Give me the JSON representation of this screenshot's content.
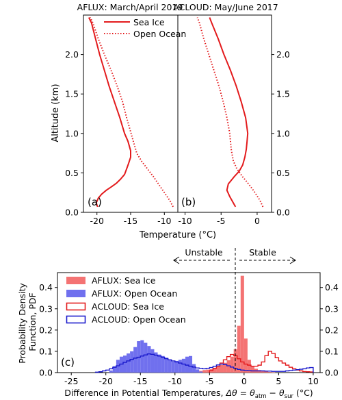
{
  "chart_data": [
    {
      "type": "line",
      "panel_label": "(a)",
      "title": "AFLUX: March/April 2019",
      "xlim": [
        -22,
        -8
      ],
      "ylim": [
        0,
        2.5
      ],
      "xticks": [
        -20,
        -15,
        -10
      ],
      "yticks": [
        0.0,
        0.5,
        1.0,
        1.5,
        2.0
      ],
      "ylabel": "Altitude (km)",
      "legend": {
        "position": "top-right",
        "entries": [
          "Sea Ice",
          "Open Ocean"
        ]
      },
      "series": [
        {
          "name": "Sea Ice",
          "style": "solid",
          "color": "#e31a1c",
          "points": [
            [
              -19.9,
              0.07
            ],
            [
              -20.1,
              0.12
            ],
            [
              -19.8,
              0.18
            ],
            [
              -19.3,
              0.23
            ],
            [
              -18.6,
              0.28
            ],
            [
              -17.9,
              0.32
            ],
            [
              -17.1,
              0.37
            ],
            [
              -16.5,
              0.42
            ],
            [
              -15.9,
              0.48
            ],
            [
              -15.6,
              0.55
            ],
            [
              -15.3,
              0.62
            ],
            [
              -15.0,
              0.7
            ],
            [
              -15.0,
              0.78
            ],
            [
              -15.4,
              0.9
            ],
            [
              -15.9,
              1.0
            ],
            [
              -16.6,
              1.2
            ],
            [
              -17.4,
              1.4
            ],
            [
              -18.2,
              1.6
            ],
            [
              -18.9,
              1.8
            ],
            [
              -19.6,
              2.0
            ],
            [
              -20.2,
              2.2
            ],
            [
              -20.8,
              2.4
            ],
            [
              -21.2,
              2.47
            ]
          ]
        },
        {
          "name": "Open Ocean",
          "style": "dotted",
          "color": "#e31a1c",
          "points": [
            [
              -8.7,
              0.07
            ],
            [
              -9.2,
              0.15
            ],
            [
              -10.0,
              0.25
            ],
            [
              -10.8,
              0.35
            ],
            [
              -11.6,
              0.45
            ],
            [
              -12.5,
              0.55
            ],
            [
              -13.4,
              0.65
            ],
            [
              -14.1,
              0.75
            ],
            [
              -14.6,
              0.9
            ],
            [
              -15.1,
              1.05
            ],
            [
              -15.6,
              1.2
            ],
            [
              -16.2,
              1.4
            ],
            [
              -17.0,
              1.6
            ],
            [
              -17.9,
              1.8
            ],
            [
              -18.9,
              2.0
            ],
            [
              -19.8,
              2.2
            ],
            [
              -20.6,
              2.4
            ],
            [
              -21.0,
              2.47
            ]
          ]
        }
      ]
    },
    {
      "type": "line",
      "panel_label": "(b)",
      "title": "ACLOUD: May/June 2017",
      "xlim": [
        -11,
        2
      ],
      "ylim": [
        0,
        2.5
      ],
      "xticks": [
        -10,
        -5,
        0
      ],
      "yticks": [
        0.0,
        0.5,
        1.0,
        1.5,
        2.0
      ],
      "xlabel": "Temperature (°C)",
      "series": [
        {
          "name": "Sea Ice",
          "style": "solid",
          "color": "#e31a1c",
          "points": [
            [
              -3.0,
              0.07
            ],
            [
              -3.3,
              0.12
            ],
            [
              -3.8,
              0.2
            ],
            [
              -4.2,
              0.28
            ],
            [
              -4.0,
              0.36
            ],
            [
              -3.2,
              0.45
            ],
            [
              -2.5,
              0.52
            ],
            [
              -2.0,
              0.6
            ],
            [
              -1.7,
              0.7
            ],
            [
              -1.5,
              0.8
            ],
            [
              -1.4,
              0.9
            ],
            [
              -1.3,
              1.0
            ],
            [
              -1.6,
              1.2
            ],
            [
              -2.2,
              1.4
            ],
            [
              -2.9,
              1.6
            ],
            [
              -3.7,
              1.8
            ],
            [
              -4.6,
              2.0
            ],
            [
              -5.4,
              2.2
            ],
            [
              -6.3,
              2.4
            ],
            [
              -6.6,
              2.47
            ]
          ]
        },
        {
          "name": "Open Ocean",
          "style": "dotted",
          "color": "#e31a1c",
          "points": [
            [
              0.8,
              0.07
            ],
            [
              0.4,
              0.15
            ],
            [
              -0.3,
              0.25
            ],
            [
              -1.1,
              0.35
            ],
            [
              -2.0,
              0.45
            ],
            [
              -2.8,
              0.55
            ],
            [
              -3.3,
              0.65
            ],
            [
              -3.6,
              0.8
            ],
            [
              -3.8,
              1.0
            ],
            [
              -4.2,
              1.2
            ],
            [
              -4.7,
              1.4
            ],
            [
              -5.3,
              1.6
            ],
            [
              -6.0,
              1.8
            ],
            [
              -6.7,
              2.0
            ],
            [
              -7.4,
              2.2
            ],
            [
              -8.0,
              2.4
            ],
            [
              -8.3,
              2.47
            ]
          ]
        }
      ]
    },
    {
      "type": "histogram",
      "panel_label": "(c)",
      "xlim": [
        -27,
        11
      ],
      "ylim": [
        0,
        0.47
      ],
      "xticks": [
        -25,
        -20,
        -15,
        -10,
        -5,
        0,
        5,
        10
      ],
      "yticks": [
        0.0,
        0.1,
        0.2,
        0.3,
        0.4
      ],
      "xlabel": "Difference in Potential Temperatures, Δθ = θatm − θsur (°C)",
      "ylabel": "Probability Density Function, PDF",
      "annotations": {
        "unstable": "Unstable",
        "stable": "Stable"
      },
      "legend": {
        "position": "top-left"
      },
      "bin_width": 0.5,
      "series": [
        {
          "name": "AFLUX: Sea Ice",
          "style": "filled",
          "color": "#f47373",
          "bins": [
            [
              -10.5,
              0.003
            ],
            [
              -10.0,
              0.002
            ],
            [
              -9.5,
              0.004
            ],
            [
              -9.0,
              0.005
            ],
            [
              -8.5,
              0.006
            ],
            [
              -8.0,
              0.007
            ],
            [
              -7.5,
              0.009
            ],
            [
              -7.0,
              0.01
            ],
            [
              -6.5,
              0.008
            ],
            [
              -6.0,
              0.012
            ],
            [
              -5.5,
              0.014
            ],
            [
              -5.0,
              0.016
            ],
            [
              -4.5,
              0.022
            ],
            [
              -4.0,
              0.028
            ],
            [
              -3.5,
              0.036
            ],
            [
              -3.0,
              0.046
            ],
            [
              -2.5,
              0.058
            ],
            [
              -2.0,
              0.075
            ],
            [
              -1.5,
              0.11
            ],
            [
              -1.0,
              0.22
            ],
            [
              -0.5,
              0.455
            ],
            [
              0.0,
              0.16
            ],
            [
              0.5,
              0.06
            ],
            [
              1.0,
              0.03
            ],
            [
              1.5,
              0.018
            ],
            [
              2.0,
              0.012
            ],
            [
              2.5,
              0.008
            ],
            [
              3.0,
              0.005
            ],
            [
              3.5,
              0.003
            ],
            [
              4.0,
              0.002
            ]
          ]
        },
        {
          "name": "AFLUX: Open Ocean",
          "style": "filled",
          "color": "#7070ee",
          "bins": [
            [
              -19.5,
              0.01
            ],
            [
              -19.0,
              0.03
            ],
            [
              -18.5,
              0.06
            ],
            [
              -18.0,
              0.075
            ],
            [
              -17.5,
              0.08
            ],
            [
              -17.0,
              0.09
            ],
            [
              -16.5,
              0.1
            ],
            [
              -16.0,
              0.12
            ],
            [
              -15.5,
              0.148
            ],
            [
              -15.0,
              0.152
            ],
            [
              -14.5,
              0.14
            ],
            [
              -14.0,
              0.125
            ],
            [
              -13.5,
              0.11
            ],
            [
              -13.0,
              0.095
            ],
            [
              -12.5,
              0.085
            ],
            [
              -12.0,
              0.078
            ],
            [
              -11.5,
              0.07
            ],
            [
              -11.0,
              0.06
            ],
            [
              -10.5,
              0.052
            ],
            [
              -10.0,
              0.055
            ],
            [
              -9.5,
              0.06
            ],
            [
              -9.0,
              0.065
            ],
            [
              -8.5,
              0.075
            ],
            [
              -8.0,
              0.078
            ],
            [
              -7.5,
              0.04
            ],
            [
              -7.0,
              0.015
            ],
            [
              -6.5,
              0.005
            ]
          ]
        },
        {
          "name": "ACLOUD: Sea Ice",
          "style": "step",
          "color": "#e31a1c",
          "bins": [
            [
              -5.0,
              0.01
            ],
            [
              -4.5,
              0.02
            ],
            [
              -4.0,
              0.03
            ],
            [
              -3.5,
              0.045
            ],
            [
              -3.0,
              0.06
            ],
            [
              -2.5,
              0.075
            ],
            [
              -2.0,
              0.085
            ],
            [
              -1.5,
              0.08
            ],
            [
              -1.0,
              0.065
            ],
            [
              -0.5,
              0.05
            ],
            [
              0.0,
              0.04
            ],
            [
              0.5,
              0.035
            ],
            [
              1.0,
              0.03
            ],
            [
              1.5,
              0.03
            ],
            [
              2.0,
              0.035
            ],
            [
              2.5,
              0.05
            ],
            [
              3.0,
              0.08
            ],
            [
              3.5,
              0.1
            ],
            [
              4.0,
              0.09
            ],
            [
              4.5,
              0.07
            ],
            [
              5.0,
              0.055
            ],
            [
              5.5,
              0.045
            ],
            [
              6.0,
              0.035
            ],
            [
              6.5,
              0.025
            ],
            [
              7.0,
              0.018
            ],
            [
              7.5,
              0.012
            ],
            [
              8.0,
              0.008
            ],
            [
              8.5,
              0.005
            ],
            [
              9.0,
              0.004
            ],
            [
              9.5,
              0.003
            ]
          ]
        },
        {
          "name": "ACLOUD: Open Ocean",
          "style": "step",
          "color": "#1a1acc",
          "bins": [
            [
              -21.5,
              0.002
            ],
            [
              -21.0,
              0.004
            ],
            [
              -20.5,
              0.008
            ],
            [
              -20.0,
              0.012
            ],
            [
              -19.5,
              0.018
            ],
            [
              -19.0,
              0.025
            ],
            [
              -18.5,
              0.032
            ],
            [
              -18.0,
              0.04
            ],
            [
              -17.5,
              0.048
            ],
            [
              -17.0,
              0.055
            ],
            [
              -16.5,
              0.062
            ],
            [
              -16.0,
              0.068
            ],
            [
              -15.5,
              0.072
            ],
            [
              -15.0,
              0.078
            ],
            [
              -14.5,
              0.083
            ],
            [
              -14.0,
              0.088
            ],
            [
              -13.5,
              0.086
            ],
            [
              -13.0,
              0.082
            ],
            [
              -12.5,
              0.078
            ],
            [
              -12.0,
              0.072
            ],
            [
              -11.5,
              0.066
            ],
            [
              -11.0,
              0.06
            ],
            [
              -10.5,
              0.055
            ],
            [
              -10.0,
              0.05
            ],
            [
              -9.5,
              0.045
            ],
            [
              -9.0,
              0.04
            ],
            [
              -8.5,
              0.035
            ],
            [
              -8.0,
              0.03
            ],
            [
              -7.5,
              0.026
            ],
            [
              -7.0,
              0.022
            ],
            [
              -6.5,
              0.02
            ],
            [
              -6.0,
              0.018
            ],
            [
              -5.5,
              0.02
            ],
            [
              -5.0,
              0.024
            ],
            [
              -4.5,
              0.03
            ],
            [
              -4.0,
              0.036
            ],
            [
              -3.5,
              0.04
            ],
            [
              -3.0,
              0.038
            ],
            [
              -2.5,
              0.032
            ],
            [
              -2.0,
              0.026
            ],
            [
              -1.5,
              0.02
            ],
            [
              -1.0,
              0.015
            ],
            [
              -0.5,
              0.012
            ],
            [
              0.0,
              0.01
            ],
            [
              0.5,
              0.009
            ],
            [
              1.0,
              0.008
            ],
            [
              1.5,
              0.008
            ],
            [
              2.0,
              0.008
            ],
            [
              2.5,
              0.008
            ],
            [
              3.0,
              0.007
            ],
            [
              3.5,
              0.007
            ],
            [
              4.0,
              0.006
            ],
            [
              4.5,
              0.006
            ],
            [
              5.0,
              0.006
            ],
            [
              5.5,
              0.006
            ],
            [
              6.0,
              0.008
            ],
            [
              6.5,
              0.01
            ],
            [
              7.0,
              0.012
            ],
            [
              7.5,
              0.014
            ],
            [
              8.0,
              0.016
            ],
            [
              8.5,
              0.018
            ],
            [
              9.0,
              0.022
            ],
            [
              9.5,
              0.024
            ]
          ]
        }
      ]
    }
  ]
}
